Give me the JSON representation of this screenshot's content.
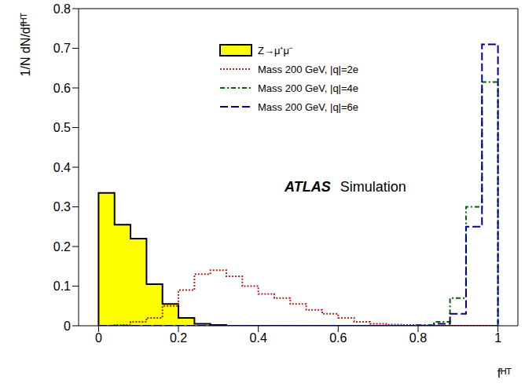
{
  "chart_data": {
    "type": "histogram",
    "x_label": "fᴴᵀ",
    "y_label": "1/N dN/dfᴴᵀ",
    "annotations": [
      "ATLAS",
      "Simulation"
    ],
    "bins": [
      0,
      0.04,
      0.08,
      0.12,
      0.16,
      0.2,
      0.24,
      0.28,
      0.32,
      0.36,
      0.4,
      0.44,
      0.48,
      0.52,
      0.56,
      0.6,
      0.64,
      0.68,
      0.72,
      0.76,
      0.8,
      0.84,
      0.88,
      0.92,
      0.96,
      1
    ],
    "series": [
      {
        "name": "Z→μ⁺μ⁻",
        "color": "#ffff00",
        "type": "area",
        "line_style": "solid",
        "values": [
          0.335,
          0.255,
          0.22,
          0.105,
          0.055,
          0.02,
          0.005,
          0.002,
          0,
          0,
          0,
          0,
          0,
          0,
          0,
          0,
          0,
          0,
          0,
          0,
          0,
          0,
          0,
          0,
          0
        ]
      },
      {
        "name": "Mass 200 GeV, |q|=2e",
        "color": "#b22222",
        "type": "line",
        "line_style": "dotted",
        "values": [
          0,
          0.002,
          0.01,
          0.02,
          0.05,
          0.09,
          0.13,
          0.14,
          0.125,
          0.1,
          0.08,
          0.07,
          0.055,
          0.04,
          0.03,
          0.02,
          0.01,
          0.005,
          0.003,
          0.002,
          0.001,
          0,
          0,
          0,
          0
        ]
      },
      {
        "name": "Mass 200 GeV, |q|=4e",
        "color": "#006400",
        "type": "line",
        "line_style": "dashdot",
        "values": [
          0,
          0,
          0,
          0,
          0,
          0,
          0,
          0,
          0,
          0,
          0,
          0,
          0,
          0,
          0,
          0,
          0,
          0,
          0,
          0,
          0.002,
          0.01,
          0.07,
          0.3,
          0.615
        ]
      },
      {
        "name": "Mass 200 GeV, |q|=6e",
        "color": "#00008b",
        "type": "line",
        "line_style": "dashed",
        "values": [
          0,
          0,
          0,
          0,
          0,
          0,
          0,
          0,
          0,
          0,
          0,
          0,
          0,
          0,
          0,
          0,
          0,
          0,
          0,
          0,
          0,
          0.005,
          0.03,
          0.25,
          0.71
        ]
      }
    ],
    "xlim": [
      -0.05,
      1.05
    ],
    "xticks": [
      0,
      0.2,
      0.4,
      0.6,
      0.8,
      1
    ],
    "ylim": [
      0,
      0.8
    ],
    "yticks": [
      0,
      0.1,
      0.2,
      0.3,
      0.4,
      0.5,
      0.6,
      0.7,
      0.8
    ]
  }
}
